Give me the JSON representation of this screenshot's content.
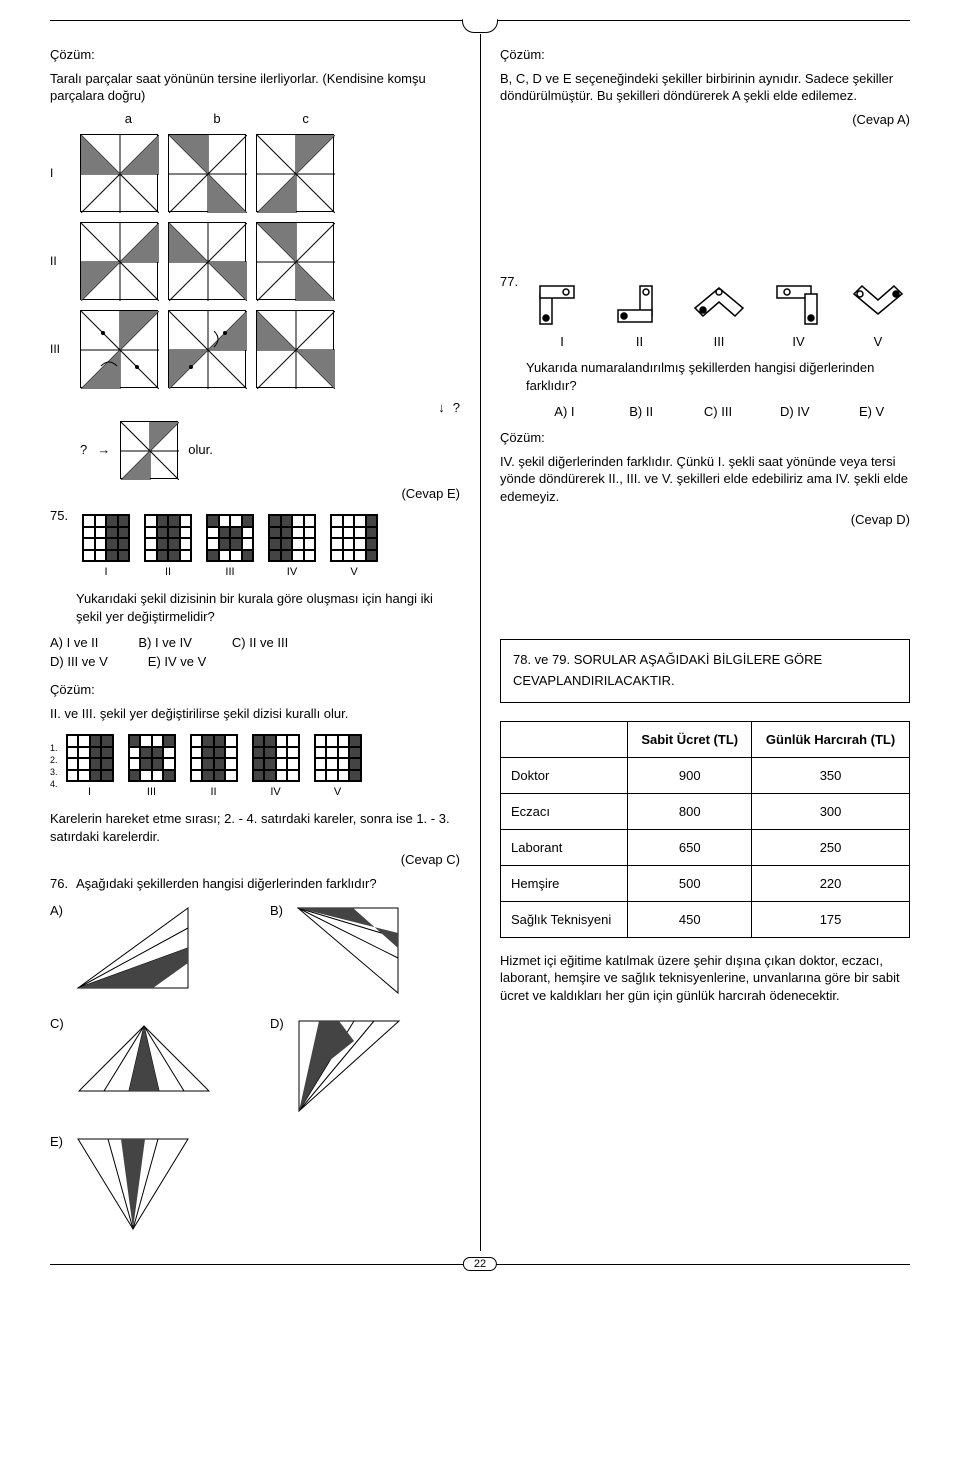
{
  "page_number": "22",
  "left": {
    "sol1_label": "Çözüm:",
    "sol1_text": "Taralı parçalar saat yönünün tersine ilerliyorlar. (Kendisine komşu parçalara doğru)",
    "col_labels": [
      "a",
      "b",
      "c"
    ],
    "row_labels": [
      "I",
      "II",
      "III"
    ],
    "q_mark": "?",
    "arrow_q": "?",
    "olur": "olur.",
    "q75_num": "75.",
    "q75_roman": [
      "I",
      "II",
      "III",
      "IV",
      "V"
    ],
    "q75_text": "Yukarıdaki şekil dizisinin bir kurala göre oluşması için hangi iki şekil yer değiştirmelidir?",
    "q75_answer_e": "(Cevap E)",
    "q75_opts": {
      "a": "A) I ve II",
      "b": "B) I ve IV",
      "c": "C) II ve III",
      "d": "D) III ve V",
      "e": "E) IV ve V"
    },
    "sol75_label": "Çözüm:",
    "sol75_text": "II. ve III. şekil yer değiştirilirse şekil dizisi kurallı olur.",
    "row_idx": [
      "1.",
      "2.",
      "3.",
      "4."
    ],
    "sol75_roman": [
      "I",
      "III",
      "II",
      "IV",
      "V"
    ],
    "sol75_explain": "Karelerin hareket etme sırası; 2. - 4. satırdaki kareler, sonra ise 1. - 3. satırdaki karelerdir.",
    "q75_answer_c": "(Cevap C)",
    "q76_num": "76.",
    "q76_text": "Aşağıdaki şekillerden hangisi diğerlerinden farklıdır?",
    "q76_opts": [
      "A)",
      "B)",
      "C)",
      "D)",
      "E)"
    ]
  },
  "right": {
    "sol2_label": "Çözüm:",
    "sol2_text": "B, C, D ve E seçeneğindeki şekiller birbirinin aynıdır. Sadece şekiller döndürülmüştür. Bu şekilleri döndürerek A şekli elde edilemez.",
    "answer_a": "(Cevap A)",
    "q77_num": "77.",
    "q77_roman": [
      "I",
      "II",
      "III",
      "IV",
      "V"
    ],
    "q77_text": "Yukarıda numaralandırılmış şekillerden hangisi diğerlerinden farklıdır?",
    "q77_opts": {
      "a": "A) I",
      "b": "B) II",
      "c": "C) III",
      "d": "D) IV",
      "e": "E) V"
    },
    "sol77_label": "Çözüm:",
    "sol77_text": "IV. şekil diğerlerinden farklıdır. Çünkü I. şekli saat yönünde veya tersi yönde döndürerek II., III. ve V. şekilleri elde edebiliriz ama IV. şekli elde edemeyiz.",
    "answer_d": "(Cevap D)",
    "info_box": "78. ve 79. SORULAR AŞAĞIDAKİ BİLGİLERE GÖRE CEVAPLANDIRILACAKTIR.",
    "table": {
      "headers": [
        "",
        "Sabit Ücret (TL)",
        "Günlük Harcırah (TL)"
      ],
      "rows": [
        [
          "Doktor",
          "900",
          "350"
        ],
        [
          "Eczacı",
          "800",
          "300"
        ],
        [
          "Laborant",
          "650",
          "250"
        ],
        [
          "Hemşire",
          "500",
          "220"
        ],
        [
          "Sağlık Teknisyeni",
          "450",
          "175"
        ]
      ]
    },
    "table_footer": "Hizmet içi eğitime katılmak üzere şehir dışına çıkan doktor, eczacı, laborant, hemşire ve sağlık teknisyenlerine, unvanlarına göre bir sabit ücret ve kaldıkları her gün için günlük harcırah ödenecektir."
  },
  "grids75": [
    [
      0,
      0,
      1,
      1,
      0,
      0,
      1,
      1,
      0,
      0,
      1,
      1,
      0,
      0,
      1,
      1
    ],
    [
      0,
      1,
      1,
      0,
      0,
      1,
      1,
      0,
      0,
      1,
      1,
      0,
      0,
      1,
      1,
      0
    ],
    [
      1,
      0,
      0,
      1,
      0,
      1,
      1,
      0,
      0,
      1,
      1,
      0,
      1,
      0,
      0,
      1
    ],
    [
      1,
      1,
      0,
      0,
      1,
      1,
      0,
      0,
      1,
      1,
      0,
      0,
      1,
      1,
      0,
      0
    ],
    [
      0,
      0,
      0,
      1,
      0,
      0,
      0,
      1,
      0,
      0,
      0,
      1,
      0,
      0,
      0,
      1
    ]
  ],
  "grids75sol": [
    [
      0,
      0,
      1,
      1,
      0,
      0,
      1,
      1,
      0,
      0,
      1,
      1,
      0,
      0,
      1,
      1
    ],
    [
      1,
      0,
      0,
      1,
      0,
      1,
      1,
      0,
      0,
      1,
      1,
      0,
      1,
      0,
      0,
      1
    ],
    [
      0,
      1,
      1,
      0,
      0,
      1,
      1,
      0,
      0,
      1,
      1,
      0,
      0,
      1,
      1,
      0
    ],
    [
      1,
      1,
      0,
      0,
      1,
      1,
      0,
      0,
      1,
      1,
      0,
      0,
      1,
      1,
      0,
      0
    ],
    [
      0,
      0,
      0,
      1,
      0,
      0,
      0,
      1,
      0,
      0,
      0,
      1,
      0,
      0,
      0,
      1
    ]
  ],
  "colors": {
    "fill": "#7a7a7a",
    "line": "#000000",
    "bg": "#ffffff"
  }
}
